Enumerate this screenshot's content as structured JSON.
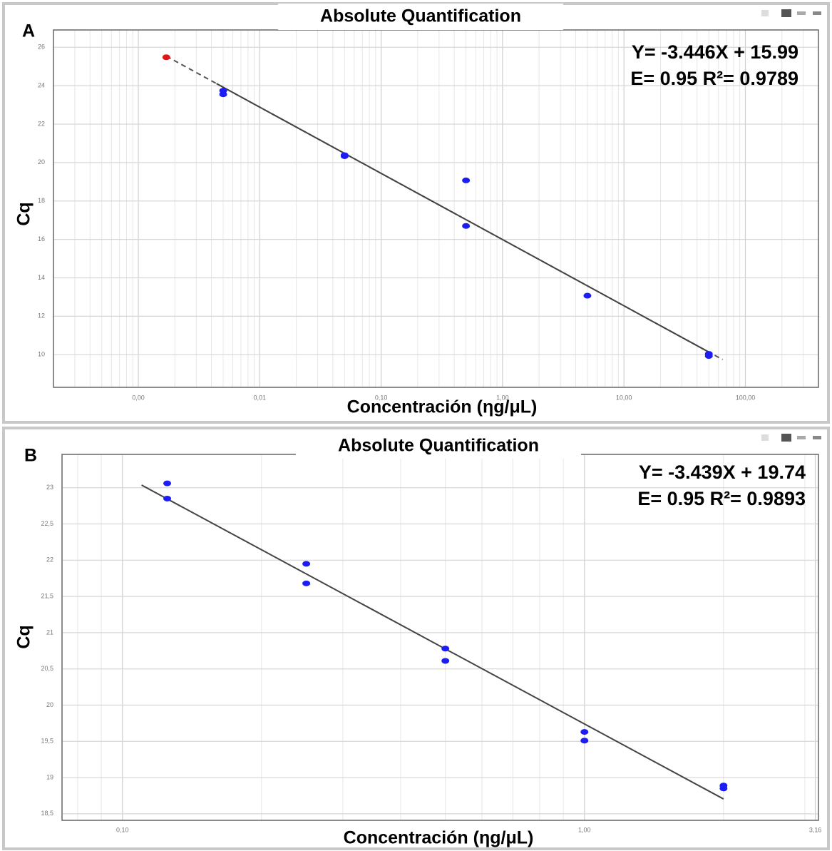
{
  "chart_data": [
    {
      "type": "scatter",
      "panel": "A",
      "title": "Absolute Quantification",
      "equation": "Y= -3.446X + 15.99",
      "stats": "E= 0.95 R²= 0.9789",
      "y_label": "Cq",
      "x_label": "Concentración (ηg/μL)",
      "x_log": true,
      "grid": true,
      "xlim": [
        0.0002,
        400
      ],
      "ylim": [
        8.3,
        26.9
      ],
      "xticks": [
        {
          "value": 0.001,
          "label": "0,00"
        },
        {
          "value": 0.01,
          "label": "0,01"
        },
        {
          "value": 0.1,
          "label": "0,10"
        },
        {
          "value": 1,
          "label": "1,00"
        },
        {
          "value": 10,
          "label": "10,00"
        },
        {
          "value": 100,
          "label": "100,00"
        }
      ],
      "yticks": [
        10,
        12,
        14,
        16,
        18,
        20,
        22,
        24,
        26
      ],
      "series": [
        {
          "color": "#1c1cf5",
          "x": [
            0.005,
            0.005,
            0.05,
            0.05,
            0.5,
            0.5,
            5,
            50,
            50
          ],
          "values": [
            23.74,
            23.55,
            20.33,
            20.38,
            19.07,
            16.7,
            13.07,
            10.04,
            9.93
          ]
        },
        {
          "color": "#e3141a",
          "x": [
            0.0017
          ],
          "values": [
            25.48
          ]
        }
      ],
      "fit": {
        "slope": -3.446,
        "intercept": 15.99
      }
    },
    {
      "type": "scatter",
      "panel": "B",
      "title": "Absolute Quantification",
      "equation": "Y= -3.439X + 19.74",
      "stats": "E= 0.95 R²= 0.9893",
      "y_label": "Cq",
      "x_label": "Concentración (ηg/μL)",
      "x_log": true,
      "grid": true,
      "xlim": [
        0.074,
        3.21
      ],
      "ylim": [
        18.41,
        23.46
      ],
      "xticks": [
        {
          "value": 0.1,
          "label": "0,10"
        },
        {
          "value": 1,
          "label": "1,00"
        },
        {
          "value": 3.16,
          "label": "3,16"
        }
      ],
      "yticks": [
        {
          "value": 18.5,
          "label": "18,5"
        },
        19,
        {
          "value": 19.5,
          "label": "19,5"
        },
        20,
        {
          "value": 20.5,
          "label": "20,5"
        },
        21,
        {
          "value": 21.5,
          "label": "21,5"
        },
        22,
        {
          "value": 22.5,
          "label": "22,5"
        },
        23
      ],
      "series": [
        {
          "color": "#1c1cf5",
          "x": [
            0.125,
            0.125,
            0.25,
            0.25,
            0.5,
            0.5,
            1,
            1,
            2,
            2
          ],
          "values": [
            23.06,
            22.85,
            21.95,
            21.68,
            20.78,
            20.61,
            19.63,
            19.51,
            18.89,
            18.85
          ]
        }
      ],
      "fit": {
        "slope": -3.439,
        "intercept": 19.74
      }
    }
  ]
}
